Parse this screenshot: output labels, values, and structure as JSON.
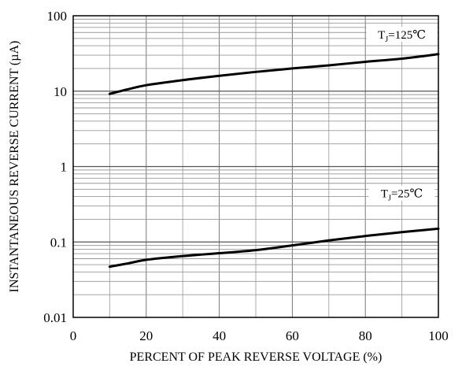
{
  "chart_data": {
    "type": "line",
    "xlabel": "PERCENT OF PEAK REVERSE VOLTAGE (%)",
    "ylabel": "INSTANTANEOUS REVERSE CURRENT (µA)",
    "xlim": [
      0,
      100
    ],
    "ylim": [
      0.01,
      100
    ],
    "yscale": "log",
    "grid": true,
    "x_ticks": [
      0,
      20,
      40,
      60,
      80,
      100
    ],
    "x_tick_labels": [
      "0",
      "20",
      "40",
      "60",
      "80",
      "100"
    ],
    "y_ticks": [
      0.01,
      0.1,
      1,
      10,
      100
    ],
    "y_tick_labels": [
      "0.01",
      "0.1",
      "1",
      "10",
      "100"
    ],
    "series": [
      {
        "name": "TJ=125℃",
        "label_main": "T",
        "label_sub": "J",
        "label_rest": "=125℃",
        "x": [
          10,
          15,
          20,
          30,
          40,
          50,
          60,
          70,
          80,
          90,
          100
        ],
        "y": [
          9.2,
          10.6,
          12,
          14,
          16,
          18,
          20,
          22,
          24.5,
          27,
          31
        ]
      },
      {
        "name": "TJ=25℃",
        "label_main": "T",
        "label_sub": "J",
        "label_rest": "=25℃",
        "x": [
          10,
          15,
          20,
          30,
          40,
          50,
          60,
          70,
          80,
          90,
          100
        ],
        "y": [
          0.047,
          0.052,
          0.058,
          0.065,
          0.071,
          0.078,
          0.09,
          0.105,
          0.12,
          0.135,
          0.15
        ]
      }
    ],
    "colors": {
      "line": "#000000",
      "grid": "#888888",
      "frame": "#000000"
    }
  }
}
